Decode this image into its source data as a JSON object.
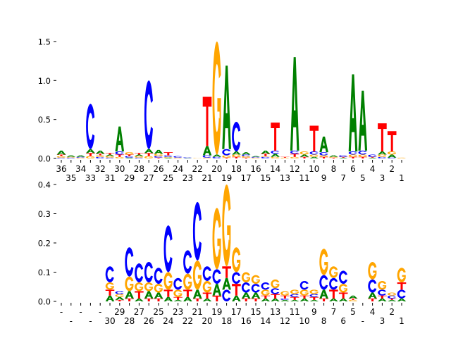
{
  "chart_data": [
    {
      "type": "sequence-logo",
      "title": "",
      "ylabel": "",
      "ylim": [
        0,
        1.5
      ],
      "yticks": [
        "0.0",
        "0.5",
        "1.0",
        "1.5"
      ],
      "ytick_values": [
        0,
        0.5,
        1.0,
        1.5
      ],
      "positions": [
        "36",
        "35",
        "34",
        "33",
        "32",
        "31",
        "30",
        "29",
        "28",
        "27",
        "26",
        "25",
        "24",
        "23",
        "22",
        "21",
        "20",
        "19",
        "18",
        "17",
        "16",
        "15",
        "14",
        "13",
        "12",
        "11",
        "10",
        "9",
        "8",
        "7",
        "6",
        "5",
        "4",
        "3",
        "2",
        "1"
      ],
      "colors": {
        "A": "#008000",
        "C": "#0000ff",
        "G": "#ffa500",
        "T": "#ff0000"
      },
      "stacks": [
        [
          [
            "C",
            0.01
          ],
          [
            "G",
            0.02
          ],
          [
            "T",
            0.02
          ],
          [
            "A",
            0.05
          ]
        ],
        [
          [
            "C",
            0.01
          ],
          [
            "G",
            0.01
          ],
          [
            "A",
            0.02
          ]
        ],
        [
          [
            "G",
            0.01
          ],
          [
            "C",
            0.01
          ],
          [
            "A",
            0.02
          ]
        ],
        [
          [
            "G",
            0.03
          ],
          [
            "T",
            0.04
          ],
          [
            "A",
            0.05
          ],
          [
            "C",
            0.58
          ]
        ],
        [
          [
            "C",
            0.02
          ],
          [
            "G",
            0.02
          ],
          [
            "T",
            0.02
          ],
          [
            "A",
            0.04
          ]
        ],
        [
          [
            "C",
            0.01
          ],
          [
            "G",
            0.02
          ],
          [
            "A",
            0.02
          ],
          [
            "T",
            0.02
          ]
        ],
        [
          [
            "G",
            0.02
          ],
          [
            "T",
            0.03
          ],
          [
            "C",
            0.04
          ],
          [
            "A",
            0.32
          ]
        ],
        [
          [
            "A",
            0.01
          ],
          [
            "C",
            0.02
          ],
          [
            "T",
            0.02
          ],
          [
            "G",
            0.03
          ]
        ],
        [
          [
            "C",
            0.01
          ],
          [
            "G",
            0.02
          ],
          [
            "A",
            0.02
          ],
          [
            "T",
            0.02
          ]
        ],
        [
          [
            "G",
            0.03
          ],
          [
            "T",
            0.04
          ],
          [
            "A",
            0.05
          ],
          [
            "C",
            0.88
          ]
        ],
        [
          [
            "T",
            0.01
          ],
          [
            "C",
            0.02
          ],
          [
            "G",
            0.03
          ],
          [
            "A",
            0.05
          ]
        ],
        [
          [
            "A",
            0.01
          ],
          [
            "G",
            0.01
          ],
          [
            "C",
            0.02
          ],
          [
            "T",
            0.04
          ]
        ],
        [
          [
            "G",
            0.01
          ],
          [
            "C",
            0.02
          ]
        ],
        [
          [
            "A",
            0.005
          ],
          [
            "C",
            0.01
          ]
        ],
        [
          [
            "G",
            0.005
          ]
        ],
        [
          [
            "G",
            0.01
          ],
          [
            "C",
            0.03
          ],
          [
            "A",
            0.12
          ],
          [
            "T",
            0.63
          ]
        ],
        [
          [
            "C",
            0.02
          ],
          [
            "A",
            0.03
          ],
          [
            "G",
            1.45
          ]
        ],
        [
          [
            "T",
            0.01
          ],
          [
            "G",
            0.03
          ],
          [
            "C",
            0.08
          ],
          [
            "A",
            1.07
          ]
        ],
        [
          [
            "T",
            0.02
          ],
          [
            "G",
            0.03
          ],
          [
            "A",
            0.04
          ],
          [
            "C",
            0.38
          ]
        ],
        [
          [
            "T",
            0.01
          ],
          [
            "G",
            0.02
          ],
          [
            "C",
            0.02
          ],
          [
            "A",
            0.03
          ]
        ],
        [
          [
            "G",
            0.01
          ],
          [
            "C",
            0.01
          ],
          [
            "A",
            0.01
          ]
        ],
        [
          [
            "C",
            0.02
          ],
          [
            "G",
            0.01
          ],
          [
            "T",
            0.03
          ],
          [
            "A",
            0.04
          ]
        ],
        [
          [
            "G",
            0.02
          ],
          [
            "A",
            0.04
          ],
          [
            "C",
            0.04
          ],
          [
            "T",
            0.36
          ]
        ],
        [
          [
            "G",
            0.01
          ],
          [
            "T",
            0.01
          ]
        ],
        [
          [
            "G",
            0.02
          ],
          [
            "T",
            0.04
          ],
          [
            "C",
            0.04
          ],
          [
            "A",
            1.2
          ]
        ],
        [
          [
            "T",
            0.02
          ],
          [
            "A",
            0.03
          ],
          [
            "G",
            0.04
          ]
        ],
        [
          [
            "A",
            0.02
          ],
          [
            "G",
            0.03
          ],
          [
            "C",
            0.04
          ],
          [
            "T",
            0.33
          ]
        ],
        [
          [
            "T",
            0.02
          ],
          [
            "G",
            0.02
          ],
          [
            "C",
            0.04
          ],
          [
            "A",
            0.2
          ]
        ],
        [
          [
            "T",
            0.01
          ],
          [
            "G",
            0.01
          ],
          [
            "A",
            0.02
          ]
        ],
        [
          [
            "A",
            0.01
          ],
          [
            "T",
            0.01
          ],
          [
            "C",
            0.02
          ]
        ],
        [
          [
            "T",
            0.02
          ],
          [
            "G",
            0.03
          ],
          [
            "C",
            0.04
          ],
          [
            "A",
            0.99
          ]
        ],
        [
          [
            "T",
            0.02
          ],
          [
            "G",
            0.03
          ],
          [
            "C",
            0.05
          ],
          [
            "A",
            0.77
          ]
        ],
        [
          [
            "A",
            0.01
          ],
          [
            "T",
            0.01
          ],
          [
            "C",
            0.03
          ]
        ],
        [
          [
            "C",
            0.02
          ],
          [
            "G",
            0.03
          ],
          [
            "A",
            0.04
          ],
          [
            "T",
            0.36
          ]
        ],
        [
          [
            "C",
            0.01
          ],
          [
            "A",
            0.04
          ],
          [
            "G",
            0.04
          ],
          [
            "T",
            0.26
          ]
        ],
        [
          [
            "G",
            0.01
          ]
        ]
      ]
    },
    {
      "type": "sequence-logo",
      "title": "",
      "ylabel": "",
      "ylim": [
        0,
        0.4
      ],
      "yticks": [
        "0.0",
        "0.1",
        "0.2",
        "0.3",
        "0.4"
      ],
      "ytick_values": [
        0,
        0.1,
        0.2,
        0.3,
        0.4
      ],
      "positions": [
        "-",
        "-",
        "-",
        "-",
        "-",
        "30",
        "29",
        "28",
        "27",
        "26",
        "25",
        "24",
        "23",
        "22",
        "21",
        "20",
        "19",
        "18",
        "17",
        "16",
        "15",
        "14",
        "13",
        "12",
        "11",
        "10",
        "9",
        "8",
        "7",
        "6",
        "5",
        "-",
        "4",
        "3",
        "2",
        "1"
      ],
      "colors": {
        "A": "#008000",
        "C": "#0000ff",
        "G": "#ffa500",
        "T": "#ff0000"
      },
      "stacks": [
        [],
        [],
        [],
        [],
        [],
        [
          [
            "A",
            0.02
          ],
          [
            "T",
            0.02
          ],
          [
            "G",
            0.025
          ],
          [
            "C",
            0.055
          ]
        ],
        [
          [
            "T",
            0.005
          ],
          [
            "A",
            0.01
          ],
          [
            "G",
            0.01
          ],
          [
            "C",
            0.01
          ]
        ],
        [
          [
            "T",
            0.01
          ],
          [
            "A",
            0.025
          ],
          [
            "G",
            0.05
          ],
          [
            "C",
            0.1
          ]
        ],
        [
          [
            "A",
            0.01
          ],
          [
            "T",
            0.025
          ],
          [
            "G",
            0.03
          ],
          [
            "C",
            0.065
          ]
        ],
        [
          [
            "T",
            0.01
          ],
          [
            "A",
            0.025
          ],
          [
            "G",
            0.03
          ],
          [
            "C",
            0.07
          ]
        ],
        [
          [
            "T",
            0.01
          ],
          [
            "A",
            0.02
          ],
          [
            "G",
            0.03
          ],
          [
            "C",
            0.055
          ]
        ],
        [
          [
            "A",
            0.015
          ],
          [
            "T",
            0.025
          ],
          [
            "G",
            0.06
          ],
          [
            "C",
            0.16
          ]
        ],
        [
          [
            "A",
            0.005
          ],
          [
            "T",
            0.01
          ],
          [
            "G",
            0.025
          ],
          [
            "C",
            0.04
          ]
        ],
        [
          [
            "A",
            0.015
          ],
          [
            "T",
            0.025
          ],
          [
            "G",
            0.055
          ],
          [
            "C",
            0.08
          ]
        ],
        [
          [
            "T",
            0.01
          ],
          [
            "A",
            0.03
          ],
          [
            "G",
            0.1
          ],
          [
            "C",
            0.2
          ]
        ],
        [
          [
            "A",
            0.01
          ],
          [
            "T",
            0.02
          ],
          [
            "G",
            0.04
          ],
          [
            "C",
            0.05
          ]
        ],
        [
          [
            "T",
            0.02
          ],
          [
            "A",
            0.04
          ],
          [
            "C",
            0.05
          ],
          [
            "G",
            0.21
          ]
        ],
        [
          [
            "C",
            0.04
          ],
          [
            "A",
            0.04
          ],
          [
            "T",
            0.04
          ],
          [
            "G",
            0.28
          ]
        ],
        [
          [
            "A",
            0.02
          ],
          [
            "T",
            0.04
          ],
          [
            "C",
            0.04
          ],
          [
            "G",
            0.085
          ]
        ],
        [
          [
            "T",
            0.01
          ],
          [
            "A",
            0.02
          ],
          [
            "C",
            0.035
          ],
          [
            "G",
            0.035
          ]
        ],
        [
          [
            "T",
            0.01
          ],
          [
            "A",
            0.02
          ],
          [
            "C",
            0.03
          ],
          [
            "G",
            0.03
          ]
        ],
        [
          [
            "A",
            0.01
          ],
          [
            "T",
            0.01
          ],
          [
            "G",
            0.02
          ],
          [
            "C",
            0.025
          ]
        ],
        [
          [
            "A",
            0.01
          ],
          [
            "T",
            0.015
          ],
          [
            "C",
            0.02
          ],
          [
            "G",
            0.03
          ]
        ],
        [
          [
            "A",
            0.005
          ],
          [
            "C",
            0.005
          ],
          [
            "T",
            0.01
          ],
          [
            "G",
            0.015
          ]
        ],
        [
          [
            "A",
            0.005
          ],
          [
            "T",
            0.01
          ],
          [
            "C",
            0.01
          ],
          [
            "G",
            0.015
          ]
        ],
        [
          [
            "A",
            0.01
          ],
          [
            "T",
            0.01
          ],
          [
            "G",
            0.02
          ],
          [
            "C",
            0.03
          ]
        ],
        [
          [
            "A",
            0.005
          ],
          [
            "T",
            0.01
          ],
          [
            "C",
            0.01
          ],
          [
            "G",
            0.015
          ]
        ],
        [
          [
            "T",
            0.01
          ],
          [
            "A",
            0.03
          ],
          [
            "C",
            0.05
          ],
          [
            "G",
            0.09
          ]
        ],
        [
          [
            "A",
            0.01
          ],
          [
            "T",
            0.03
          ],
          [
            "C",
            0.04
          ],
          [
            "G",
            0.04
          ]
        ],
        [
          [
            "A",
            0.01
          ],
          [
            "T",
            0.02
          ],
          [
            "G",
            0.03
          ],
          [
            "C",
            0.045
          ]
        ],
        [
          [
            "G",
            0.005
          ],
          [
            "T",
            0.005
          ],
          [
            "A",
            0.01
          ]
        ],
        [],
        [
          [
            "T",
            0.01
          ],
          [
            "A",
            0.02
          ],
          [
            "C",
            0.045
          ],
          [
            "G",
            0.06
          ]
        ],
        [
          [
            "A",
            0.01
          ],
          [
            "T",
            0.01
          ],
          [
            "C",
            0.02
          ],
          [
            "G",
            0.03
          ]
        ],
        [
          [
            "A",
            0.005
          ],
          [
            "T",
            0.005
          ],
          [
            "C",
            0.01
          ],
          [
            "G",
            0.01
          ]
        ],
        [
          [
            "A",
            0.01
          ],
          [
            "C",
            0.03
          ],
          [
            "T",
            0.025
          ],
          [
            "G",
            0.05
          ]
        ]
      ]
    }
  ]
}
